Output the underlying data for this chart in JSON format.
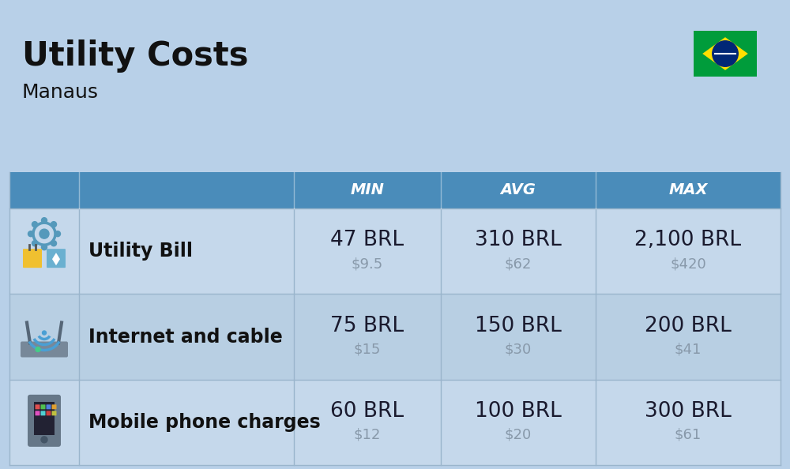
{
  "title": "Utility Costs",
  "subtitle": "Manaus",
  "header_bg": "#4a8cba",
  "header_text_color": "#ffffff",
  "bg_color": "#b8d0e8",
  "table_row_bg_odd": "#c5d8eb",
  "table_row_bg_even": "#b8cfe3",
  "col_header_labels": [
    "MIN",
    "AVG",
    "MAX"
  ],
  "rows": [
    {
      "label": "Utility Bill",
      "icon": "utility",
      "min_brl": "47 BRL",
      "min_usd": "$9.5",
      "avg_brl": "310 BRL",
      "avg_usd": "$62",
      "max_brl": "2,100 BRL",
      "max_usd": "$420"
    },
    {
      "label": "Internet and cable",
      "icon": "internet",
      "min_brl": "75 BRL",
      "min_usd": "$15",
      "avg_brl": "150 BRL",
      "avg_usd": "$30",
      "max_brl": "200 BRL",
      "max_usd": "$41"
    },
    {
      "label": "Mobile phone charges",
      "icon": "mobile",
      "min_brl": "60 BRL",
      "min_usd": "$12",
      "avg_brl": "100 BRL",
      "avg_usd": "$20",
      "max_brl": "300 BRL",
      "max_usd": "$61"
    }
  ],
  "title_fontsize": 30,
  "subtitle_fontsize": 18,
  "header_fontsize": 14,
  "cell_brl_fontsize": 19,
  "cell_usd_fontsize": 13,
  "label_fontsize": 17,
  "brl_color": "#1a1a2e",
  "usd_color": "#8899aa",
  "label_color": "#111111",
  "flag_green": "#009c3b",
  "flag_yellow": "#FFDF00",
  "flag_blue": "#002776"
}
